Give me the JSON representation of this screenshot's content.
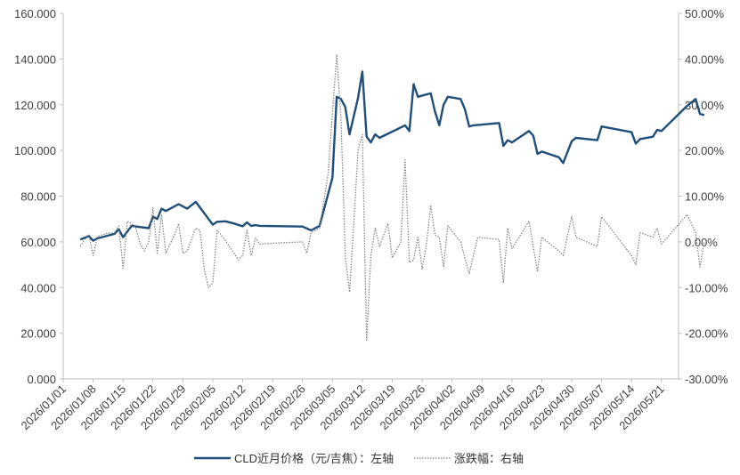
{
  "chart_data": {
    "type": "line",
    "title": "",
    "x_range": [
      "2026/01/01",
      "2026/05/25"
    ],
    "x_tick_labels": [
      "2026/01/01",
      "2026/01/08",
      "2026/01/15",
      "2026/01/22",
      "2026/01/29",
      "2026/02/05",
      "2026/02/12",
      "2026/02/19",
      "2026/02/26",
      "2026/03/05",
      "2026/03/12",
      "2026/03/19",
      "2026/03/26",
      "2026/04/02",
      "2026/04/09",
      "2026/04/16",
      "2026/04/23",
      "2026/04/30",
      "2026/05/07",
      "2026/05/14",
      "2026/05/21"
    ],
    "y_left": {
      "range": [
        0,
        160
      ],
      "tick_labels": [
        "0.000",
        "20.000",
        "40.000",
        "60.000",
        "80.000",
        "100.000",
        "120.000",
        "140.000",
        "160.000"
      ]
    },
    "y_right": {
      "range": [
        -0.3,
        0.5
      ],
      "tick_labels": [
        "-30.00%",
        "-20.00%",
        "-10.00%",
        "0.00%",
        "10.00%",
        "20.00%",
        "30.00%",
        "40.00%",
        "50.00%"
      ]
    },
    "grid": false,
    "legend_position": "bottom",
    "series": [
      {
        "name": "CLD近月价格（元/吉焦）：左轴",
        "axis": "left",
        "color": "#1f4e79",
        "style": "solid",
        "points": [
          [
            "2026/01/05",
            61.0
          ],
          [
            "2026/01/07",
            62.5
          ],
          [
            "2026/01/08",
            60.5
          ],
          [
            "2026/01/09",
            61.5
          ],
          [
            "2026/01/13",
            63.5
          ],
          [
            "2026/01/14",
            65.5
          ],
          [
            "2026/01/15",
            62.0
          ],
          [
            "2026/01/16",
            64.5
          ],
          [
            "2026/01/17",
            67.0
          ],
          [
            "2026/01/21",
            66.0
          ],
          [
            "2026/01/22",
            71.0
          ],
          [
            "2026/01/23",
            70.0
          ],
          [
            "2026/01/24",
            74.5
          ],
          [
            "2026/01/25",
            73.5
          ],
          [
            "2026/01/28",
            76.5
          ],
          [
            "2026/01/30",
            74.5
          ],
          [
            "2026/02/01",
            77.5
          ],
          [
            "2026/02/05",
            67.5
          ],
          [
            "2026/02/06",
            68.8
          ],
          [
            "2026/02/08",
            69.0
          ],
          [
            "2026/02/10",
            68.0
          ],
          [
            "2026/02/12",
            66.8
          ],
          [
            "2026/02/13",
            68.5
          ],
          [
            "2026/02/14",
            67.0
          ],
          [
            "2026/02/15",
            67.3
          ],
          [
            "2026/02/16",
            67.0
          ],
          [
            "2026/02/26",
            66.7
          ],
          [
            "2026/02/28",
            65.0
          ],
          [
            "2026/03/02",
            67.0
          ],
          [
            "2026/03/05",
            88.0
          ],
          [
            "2026/03/06",
            123.5
          ],
          [
            "2026/03/07",
            122.5
          ],
          [
            "2026/03/08",
            119.0
          ],
          [
            "2026/03/09",
            107.0
          ],
          [
            "2026/03/11",
            123.0
          ],
          [
            "2026/03/12",
            134.5
          ],
          [
            "2026/03/13",
            106.0
          ],
          [
            "2026/03/14",
            103.5
          ],
          [
            "2026/03/15",
            107.0
          ],
          [
            "2026/03/16",
            105.5
          ],
          [
            "2026/03/22",
            111.0
          ],
          [
            "2026/03/23",
            108.5
          ],
          [
            "2026/03/24",
            129.0
          ],
          [
            "2026/03/25",
            123.5
          ],
          [
            "2026/03/28",
            125.0
          ],
          [
            "2026/03/29",
            117.0
          ],
          [
            "2026/03/30",
            111.0
          ],
          [
            "2026/03/31",
            120.0
          ],
          [
            "2026/04/01",
            123.5
          ],
          [
            "2026/04/04",
            122.5
          ],
          [
            "2026/04/05",
            118.0
          ],
          [
            "2026/04/06",
            110.5
          ],
          [
            "2026/04/07",
            111.0
          ],
          [
            "2026/04/13",
            112.0
          ],
          [
            "2026/04/14",
            102.0
          ],
          [
            "2026/04/15",
            104.5
          ],
          [
            "2026/04/16",
            103.5
          ],
          [
            "2026/04/20",
            108.5
          ],
          [
            "2026/04/21",
            106.5
          ],
          [
            "2026/04/22",
            98.5
          ],
          [
            "2026/04/23",
            99.5
          ],
          [
            "2026/04/27",
            97.0
          ],
          [
            "2026/04/28",
            94.5
          ],
          [
            "2026/04/30",
            104.0
          ],
          [
            "2026/05/01",
            105.5
          ],
          [
            "2026/05/06",
            104.5
          ],
          [
            "2026/05/07",
            110.5
          ],
          [
            "2026/05/14",
            108.0
          ],
          [
            "2026/05/15",
            103.0
          ],
          [
            "2026/05/16",
            105.0
          ],
          [
            "2026/05/19",
            106.0
          ],
          [
            "2026/05/20",
            109.0
          ],
          [
            "2026/05/21",
            108.5
          ],
          [
            "2026/05/27",
            119.5
          ],
          [
            "2026/05/29",
            122.5
          ],
          [
            "2026/05/30",
            116.0
          ],
          [
            "2026/05/31",
            115.5
          ]
        ]
      },
      {
        "name": "涨跌幅：右轴",
        "axis": "right",
        "color": "#7f7f7f",
        "style": "dotted",
        "points": [
          [
            "2026/01/05",
            -0.01
          ],
          [
            "2026/01/06",
            0.005
          ],
          [
            "2026/01/07",
            0.015
          ],
          [
            "2026/01/08",
            -0.03
          ],
          [
            "2026/01/09",
            0.012
          ],
          [
            "2026/01/11",
            0.018
          ],
          [
            "2026/01/13",
            0.02
          ],
          [
            "2026/01/14",
            0.035
          ],
          [
            "2026/01/15",
            -0.058
          ],
          [
            "2026/01/16",
            0.045
          ],
          [
            "2026/01/17",
            0.04
          ],
          [
            "2026/01/18",
            0.03
          ],
          [
            "2026/01/19",
            -0.005
          ],
          [
            "2026/01/20",
            -0.02
          ],
          [
            "2026/01/21",
            0.0
          ],
          [
            "2026/01/22",
            0.075
          ],
          [
            "2026/01/23",
            -0.025
          ],
          [
            "2026/01/24",
            0.06
          ],
          [
            "2026/01/25",
            -0.025
          ],
          [
            "2026/01/27",
            0.015
          ],
          [
            "2026/01/28",
            0.04
          ],
          [
            "2026/01/29",
            -0.025
          ],
          [
            "2026/01/30",
            -0.02
          ],
          [
            "2026/02/01",
            0.03
          ],
          [
            "2026/02/02",
            0.025
          ],
          [
            "2026/02/03",
            -0.06
          ],
          [
            "2026/02/04",
            -0.1
          ],
          [
            "2026/02/05",
            -0.09
          ],
          [
            "2026/02/06",
            0.025
          ],
          [
            "2026/02/07",
            0.015
          ],
          [
            "2026/02/08",
            0.002
          ],
          [
            "2026/02/10",
            -0.025
          ],
          [
            "2026/02/11",
            -0.04
          ],
          [
            "2026/02/12",
            -0.03
          ],
          [
            "2026/02/13",
            0.025
          ],
          [
            "2026/02/14",
            -0.03
          ],
          [
            "2026/02/15",
            0.008
          ],
          [
            "2026/02/16",
            -0.005
          ],
          [
            "2026/02/19",
            -0.003
          ],
          [
            "2026/02/26",
            0.0
          ],
          [
            "2026/02/27",
            -0.025
          ],
          [
            "2026/02/28",
            0.02
          ],
          [
            "2026/03/02",
            0.03
          ],
          [
            "2026/03/04",
            0.15
          ],
          [
            "2026/03/06",
            0.41
          ],
          [
            "2026/03/07",
            0.27
          ],
          [
            "2026/03/08",
            -0.03
          ],
          [
            "2026/03/09",
            -0.11
          ],
          [
            "2026/03/10",
            0.04
          ],
          [
            "2026/03/11",
            0.2
          ],
          [
            "2026/03/12",
            0.235
          ],
          [
            "2026/03/13",
            -0.215
          ],
          [
            "2026/03/14",
            -0.03
          ],
          [
            "2026/03/15",
            0.03
          ],
          [
            "2026/03/16",
            -0.01
          ],
          [
            "2026/03/18",
            0.04
          ],
          [
            "2026/03/19",
            -0.035
          ],
          [
            "2026/03/21",
            0.0
          ],
          [
            "2026/03/22",
            0.18
          ],
          [
            "2026/03/23",
            -0.045
          ],
          [
            "2026/03/24",
            -0.04
          ],
          [
            "2026/03/25",
            0.01
          ],
          [
            "2026/03/26",
            -0.06
          ],
          [
            "2026/03/27",
            -0.005
          ],
          [
            "2026/03/28",
            0.08
          ],
          [
            "2026/03/29",
            0.015
          ],
          [
            "2026/03/30",
            0.01
          ],
          [
            "2026/03/31",
            -0.055
          ],
          [
            "2026/04/01",
            0.035
          ],
          [
            "2026/04/04",
            0.0
          ],
          [
            "2026/04/05",
            -0.035
          ],
          [
            "2026/04/06",
            -0.07
          ],
          [
            "2026/04/08",
            0.01
          ],
          [
            "2026/04/13",
            0.005
          ],
          [
            "2026/04/14",
            -0.09
          ],
          [
            "2026/04/15",
            0.03
          ],
          [
            "2026/04/16",
            -0.015
          ],
          [
            "2026/04/20",
            0.045
          ],
          [
            "2026/04/21",
            -0.01
          ],
          [
            "2026/04/22",
            -0.065
          ],
          [
            "2026/04/23",
            0.01
          ],
          [
            "2026/04/27",
            -0.02
          ],
          [
            "2026/04/28",
            -0.03
          ],
          [
            "2026/04/30",
            0.055
          ],
          [
            "2026/05/01",
            0.01
          ],
          [
            "2026/05/06",
            -0.01
          ],
          [
            "2026/05/07",
            0.055
          ],
          [
            "2026/05/14",
            -0.03
          ],
          [
            "2026/05/15",
            -0.05
          ],
          [
            "2026/05/16",
            0.02
          ],
          [
            "2026/05/19",
            0.01
          ],
          [
            "2026/05/20",
            0.03
          ],
          [
            "2026/05/21",
            -0.005
          ],
          [
            "2026/05/27",
            0.06
          ],
          [
            "2026/05/29",
            0.02
          ],
          [
            "2026/05/30",
            -0.055
          ],
          [
            "2026/05/31",
            0.0
          ]
        ]
      }
    ]
  }
}
